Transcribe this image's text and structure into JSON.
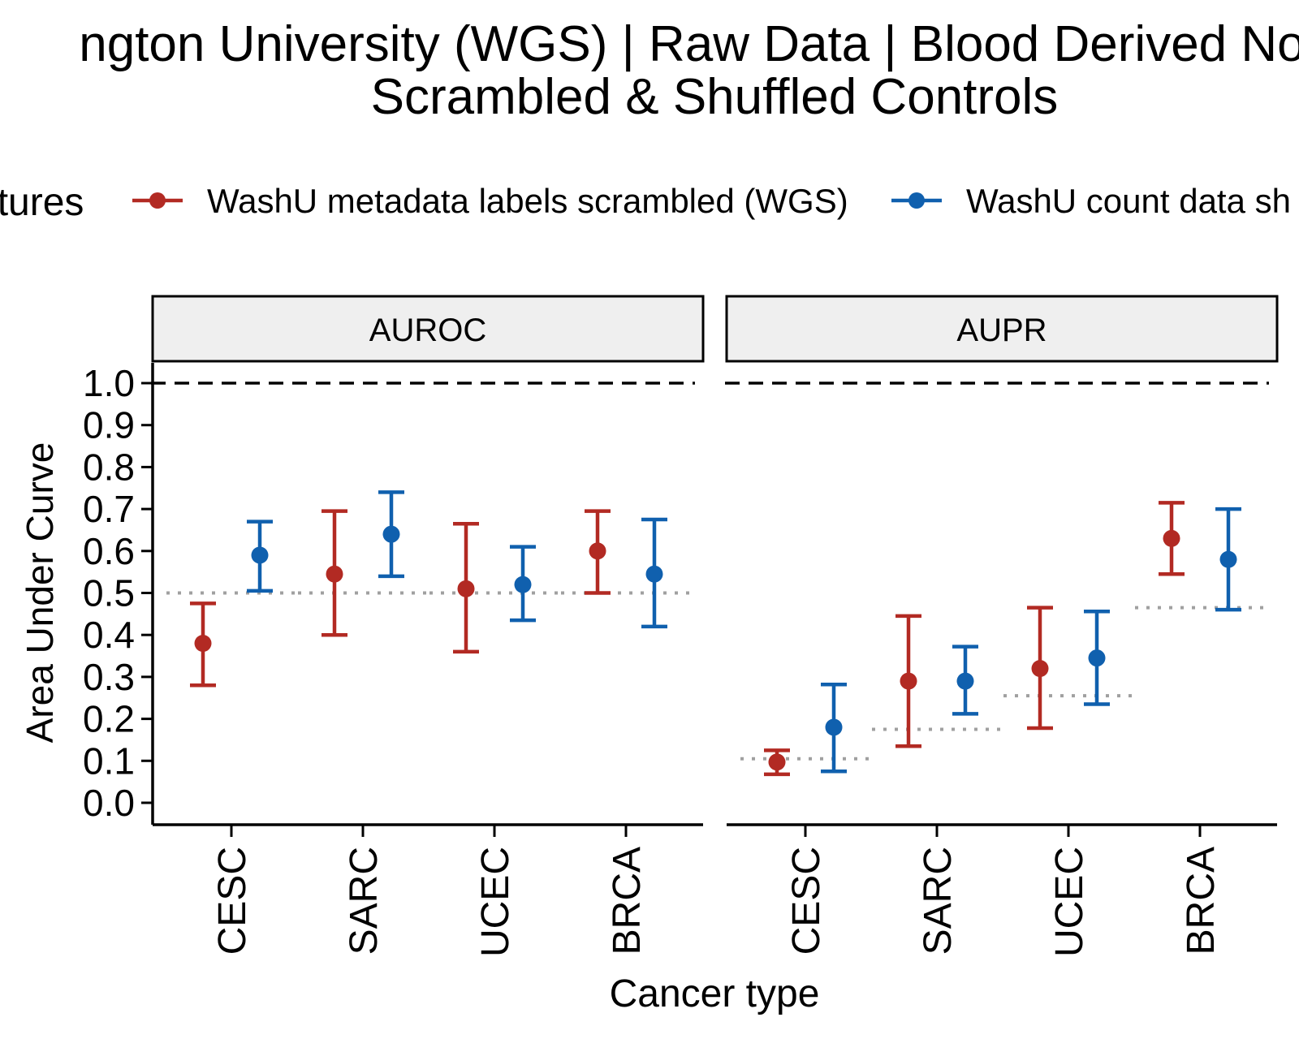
{
  "chart_data": {
    "type": "scatter",
    "title": [
      "ngton University (WGS) | Raw Data | Blood Derived Norn",
      "Scrambled & Shuffled Controls"
    ],
    "legend": {
      "title": "atures",
      "position": "top",
      "entries": [
        {
          "label": "WashU metadata labels scrambled (WGS)",
          "color": "#B22A23"
        },
        {
          "label": "WashU count data sh",
          "color": "#1060AE"
        }
      ]
    },
    "ylabel": "Area Under Curve",
    "xlabel": "Cancer type",
    "ylim": [
      0,
      1
    ],
    "yticks": [
      "0.0",
      "0.1",
      "0.2",
      "0.3",
      "0.4",
      "0.5",
      "0.6",
      "0.7",
      "0.8",
      "0.9",
      "1.0"
    ],
    "categories": [
      "CESC",
      "SARC",
      "UCEC",
      "BRCA"
    ],
    "reference_line": 1.0,
    "panels": [
      {
        "name": "AUROC",
        "baseline": [
          0.5,
          0.5,
          0.5,
          0.5
        ],
        "series": [
          {
            "name": "WashU metadata labels scrambled (WGS)",
            "color": "#B22A23",
            "values": [
              0.38,
              0.545,
              0.51,
              0.6
            ],
            "lower": [
              0.28,
              0.4,
              0.36,
              0.5
            ],
            "upper": [
              0.475,
              0.695,
              0.665,
              0.695
            ]
          },
          {
            "name": "WashU count data sh",
            "color": "#1060AE",
            "values": [
              0.59,
              0.64,
              0.52,
              0.545
            ],
            "lower": [
              0.505,
              0.54,
              0.435,
              0.42
            ],
            "upper": [
              0.67,
              0.74,
              0.61,
              0.675
            ]
          }
        ]
      },
      {
        "name": "AUPR",
        "baseline": [
          0.105,
          0.175,
          0.255,
          0.465
        ],
        "series": [
          {
            "name": "WashU metadata labels scrambled (WGS)",
            "color": "#B22A23",
            "values": [
              0.097,
              0.29,
              0.32,
              0.63
            ],
            "lower": [
              0.068,
              0.135,
              0.178,
              0.545
            ],
            "upper": [
              0.125,
              0.445,
              0.465,
              0.715
            ]
          },
          {
            "name": "WashU count data sh",
            "color": "#1060AE",
            "values": [
              0.18,
              0.29,
              0.345,
              0.58
            ],
            "lower": [
              0.075,
              0.212,
              0.235,
              0.46
            ],
            "upper": [
              0.282,
              0.372,
              0.456,
              0.7
            ]
          }
        ]
      }
    ]
  }
}
